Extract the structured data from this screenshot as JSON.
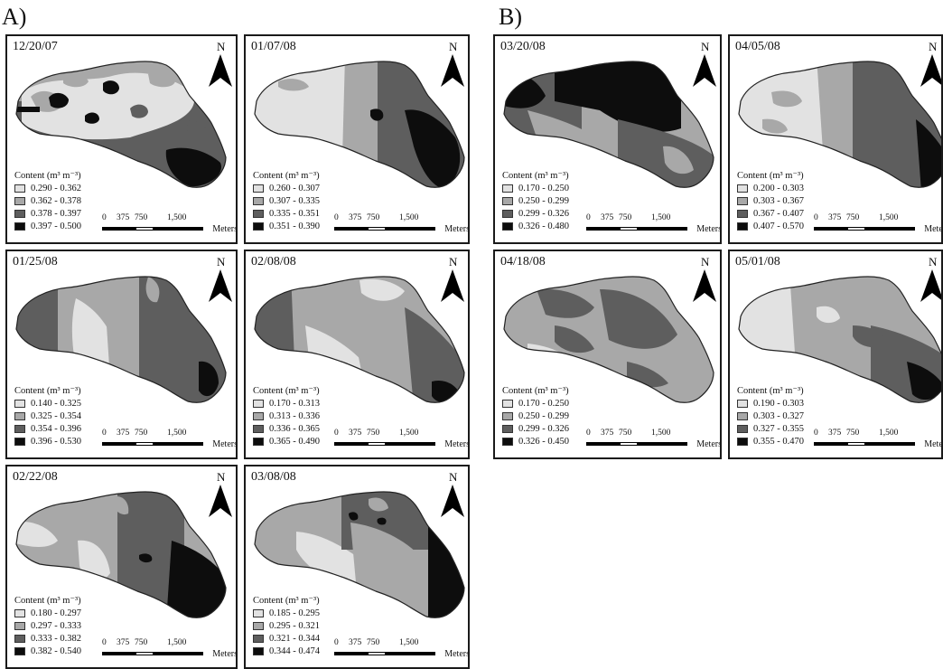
{
  "sections": [
    {
      "label": "A)"
    },
    {
      "label": "B)"
    }
  ],
  "common": {
    "north_label": "N",
    "legend_title": "Content (m³ m⁻³)",
    "scale_ticks": [
      "0",
      "375",
      "750",
      "1,500"
    ],
    "scale_unit": "Meters",
    "class_colors": [
      "#e2e2e2",
      "#a8a8a8",
      "#5e5e5e",
      "#0d0d0d"
    ]
  },
  "panels": [
    {
      "date": "12/20/07",
      "legend": [
        "0.290 - 0.362",
        "0.362 - 0.378",
        "0.378 - 0.397",
        "0.397 - 0.500"
      ]
    },
    {
      "date": "01/07/08",
      "legend": [
        "0.260 - 0.307",
        "0.307 - 0.335",
        "0.335 - 0.351",
        "0.351 - 0.390"
      ]
    },
    {
      "date": "01/25/08",
      "legend": [
        "0.140 - 0.325",
        "0.325 - 0.354",
        "0.354 - 0.396",
        "0.396 - 0.530"
      ]
    },
    {
      "date": "02/08/08",
      "legend": [
        "0.170 - 0.313",
        "0.313 - 0.336",
        "0.336 - 0.365",
        "0.365 - 0.490"
      ]
    },
    {
      "date": "02/22/08",
      "legend": [
        "0.180 - 0.297",
        "0.297 - 0.333",
        "0.333 - 0.382",
        "0.382 - 0.540"
      ]
    },
    {
      "date": "03/08/08",
      "legend": [
        "0.185 - 0.295",
        "0.295 - 0.321",
        "0.321 - 0.344",
        "0.344 - 0.474"
      ]
    },
    {
      "date": "03/20/08",
      "legend": [
        "0.170 - 0.250",
        "0.250 - 0.299",
        "0.299 - 0.326",
        "0.326 - 0.480"
      ]
    },
    {
      "date": "04/05/08",
      "legend": [
        "0.200 - 0.303",
        "0.303 - 0.367",
        "0.367 - 0.407",
        "0.407 - 0.570"
      ]
    },
    {
      "date": "04/18/08",
      "legend": [
        "0.170 - 0.250",
        "0.250 - 0.299",
        "0.299 - 0.326",
        "0.326 - 0.450"
      ]
    },
    {
      "date": "05/01/08",
      "legend": [
        "0.190 - 0.303",
        "0.303 - 0.327",
        "0.327 - 0.355",
        "0.355 - 0.470"
      ]
    }
  ]
}
